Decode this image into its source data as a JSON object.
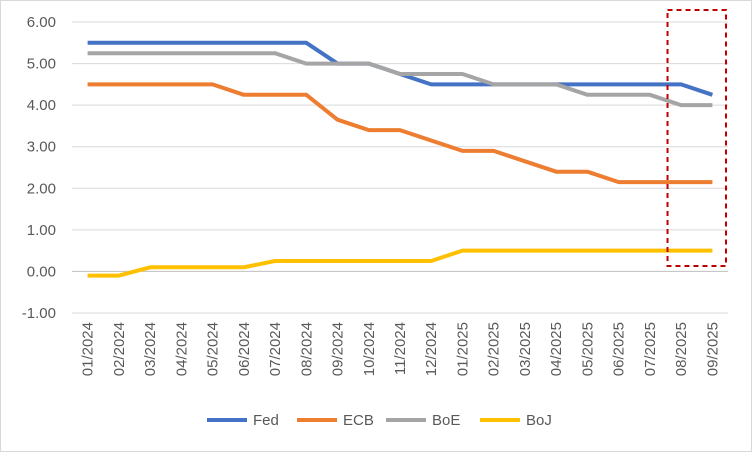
{
  "chart_data": {
    "type": "line",
    "title": "",
    "xlabel": "",
    "ylabel": "",
    "ylim": [
      -1.0,
      6.0
    ],
    "yticks": [
      "6.00",
      "5.00",
      "4.00",
      "3.00",
      "2.00",
      "1.00",
      "0.00",
      "-1.00"
    ],
    "categories": [
      "01/2024",
      "02/2024",
      "03/2024",
      "04/2024",
      "05/2024",
      "06/2024",
      "07/2024",
      "08/2024",
      "09/2024",
      "10/2024",
      "11/2024",
      "12/2024",
      "01/2025",
      "02/2025",
      "03/2025",
      "04/2025",
      "05/2025",
      "06/2025",
      "07/2025",
      "08/2025",
      "09/2025"
    ],
    "grid": "horizontal",
    "legend_position": "bottom",
    "highlight_box": {
      "from_category": "08/2025",
      "to_category": "09/2025",
      "style": "dashed",
      "color": "#c00000"
    },
    "series": [
      {
        "name": "Fed",
        "color": "#4472c4",
        "values": [
          5.5,
          5.5,
          5.5,
          5.5,
          5.5,
          5.5,
          5.5,
          5.5,
          5.0,
          5.0,
          4.75,
          4.5,
          4.5,
          4.5,
          4.5,
          4.5,
          4.5,
          4.5,
          4.5,
          4.5,
          4.25
        ]
      },
      {
        "name": "ECB",
        "color": "#ed7d31",
        "values": [
          4.5,
          4.5,
          4.5,
          4.5,
          4.5,
          4.25,
          4.25,
          4.25,
          3.65,
          3.4,
          3.4,
          3.15,
          2.9,
          2.9,
          2.65,
          2.4,
          2.4,
          2.15,
          2.15,
          2.15,
          2.15
        ]
      },
      {
        "name": "BoE",
        "color": "#a5a5a5",
        "values": [
          5.25,
          5.25,
          5.25,
          5.25,
          5.25,
          5.25,
          5.25,
          5.0,
          5.0,
          5.0,
          4.75,
          4.75,
          4.75,
          4.5,
          4.5,
          4.5,
          4.25,
          4.25,
          4.25,
          4.0,
          4.0
        ]
      },
      {
        "name": "BoJ",
        "color": "#ffc000",
        "values": [
          -0.1,
          -0.1,
          0.1,
          0.1,
          0.1,
          0.1,
          0.25,
          0.25,
          0.25,
          0.25,
          0.25,
          0.25,
          0.5,
          0.5,
          0.5,
          0.5,
          0.5,
          0.5,
          0.5,
          0.5,
          0.5
        ]
      }
    ]
  }
}
